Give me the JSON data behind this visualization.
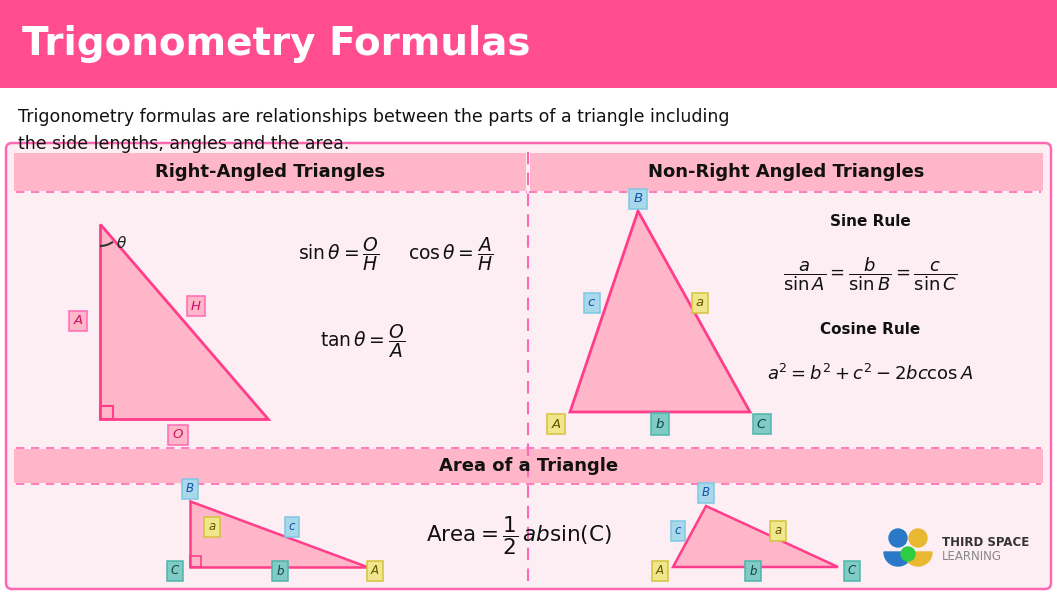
{
  "title": "Trigonometry Formulas",
  "title_bg": "#FF4D8F",
  "title_color": "#FFFFFF",
  "bg_color": "#FFFFFF",
  "panel_bg": "#FDEEF4",
  "panel_border": "#FF69B4",
  "header_bg": "#FFB6C8",
  "pink_fill": "#FFB6C8",
  "pink_edge": "#FF3D8A",
  "dashed_color": "#FF69B4",
  "text_dark": "#111111",
  "label_pink_bg": "#FFB6C8",
  "label_pink_edge": "#FF69B4",
  "label_blue_bg": "#A8D8EA",
  "label_blue_edge": "#7EC8E3",
  "label_green_bg": "#B8E4B8",
  "label_green_edge": "#80CC80",
  "label_yellow_bg": "#F0E68C",
  "label_yellow_edge": "#D4C43C",
  "label_teal_bg": "#80CBC4",
  "label_teal_edge": "#4DB6AC",
  "desc_line1": "Trigonometry formulas are relationships between the parts of a triangle including",
  "desc_line2": "the side lengths, angles and the area.",
  "right_section_title": "Right-Angled Triangles",
  "nonright_section_title": "Non-Right Angled Triangles",
  "area_section_title": "Area of a Triangle",
  "sine_rule_title": "Sine Rule",
  "cosine_rule_title": "Cosine Rule"
}
